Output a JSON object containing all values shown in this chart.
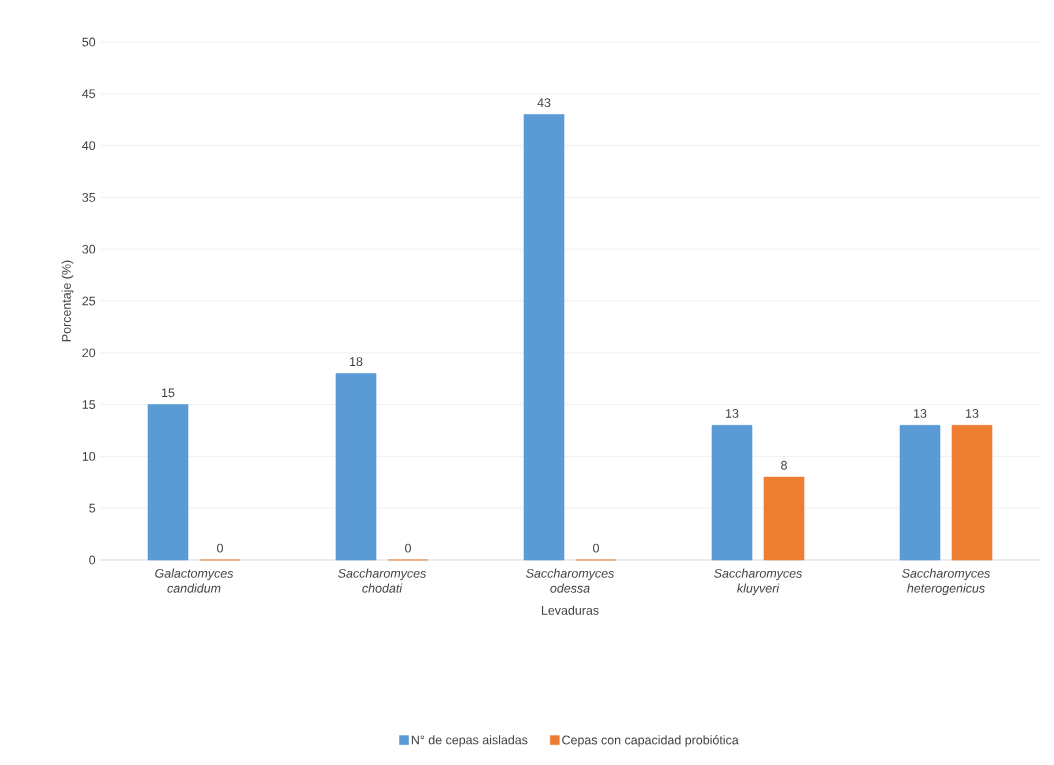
{
  "chart_data": {
    "type": "bar",
    "xlabel": "Levaduras",
    "ylabel": "Porcentaje (%)",
    "categories": [
      "Galactomyces candidum",
      "Saccharomyces chodati",
      "Saccharomyces odessa",
      "Saccharomyces kluyveri",
      "Saccharomyces heterogenicus"
    ],
    "series": [
      {
        "name": "N° de cepas aisladas",
        "color": "#5b9bd5",
        "values": [
          15,
          18,
          43,
          13,
          13
        ]
      },
      {
        "name": "Cepas con capacidad probiótica",
        "color": "#ed7d31",
        "values": [
          0,
          0,
          0,
          8,
          13
        ]
      }
    ],
    "ylim": [
      0,
      50
    ],
    "yticks": [
      0,
      5,
      10,
      15,
      20,
      25,
      30,
      35,
      40,
      45,
      50
    ],
    "grid": "y",
    "legend": "bottom",
    "data_labels": true
  }
}
